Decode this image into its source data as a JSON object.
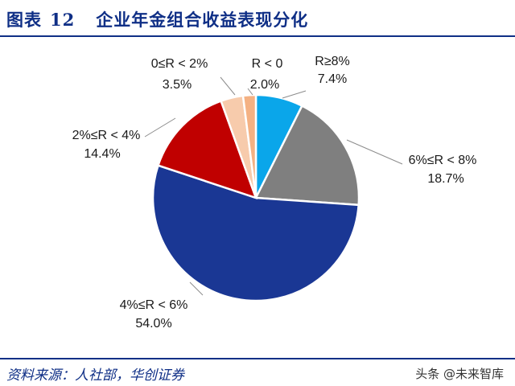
{
  "header": {
    "figure_label": "图表",
    "figure_number": "12",
    "title": "企业年金组合收益表现分化"
  },
  "footer": {
    "source": "资料来源：人社部，华创证券",
    "watermark": "头条 @未来智库"
  },
  "chart_data": {
    "type": "pie",
    "title": "企业年金组合收益表现分化",
    "slices": [
      {
        "label": "R≥8%",
        "value": 7.4,
        "value_label": "7.4%",
        "color": "#0aa6ea"
      },
      {
        "label": "6%≤R < 8%",
        "value": 18.7,
        "value_label": "18.7%",
        "color": "#7f7f7f"
      },
      {
        "label": "4%≤R < 6%",
        "value": 54.0,
        "value_label": "54.0%",
        "color": "#1a3794"
      },
      {
        "label": "2%≤R < 4%",
        "value": 14.4,
        "value_label": "14.4%",
        "color": "#c00000"
      },
      {
        "label": "0≤R < 2%",
        "value": 3.5,
        "value_label": "3.5%",
        "color": "#f7cbac"
      },
      {
        "label": "R < 0",
        "value": 2.0,
        "value_label": "2.0%",
        "color": "#f4b183"
      }
    ],
    "start_angle_deg": 0,
    "direction": "clockwise",
    "legend": "none"
  }
}
